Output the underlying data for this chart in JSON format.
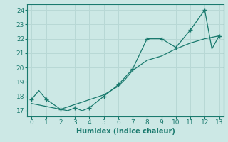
{
  "xlabel": "Humidex (Indice chaleur)",
  "ylabel": "",
  "xlim": [
    -0.3,
    13.3
  ],
  "ylim": [
    16.6,
    24.4
  ],
  "xticks": [
    0,
    1,
    2,
    3,
    4,
    5,
    6,
    7,
    8,
    9,
    10,
    11,
    12,
    13
  ],
  "yticks": [
    17,
    18,
    19,
    20,
    21,
    22,
    23,
    24
  ],
  "jagged_x": [
    0,
    0.5,
    1,
    2,
    2.5,
    3,
    3.5,
    4,
    5,
    6,
    7,
    8,
    9,
    10,
    11,
    12,
    12.5,
    13
  ],
  "jagged_y": [
    17.8,
    18.4,
    17.8,
    17.1,
    17.0,
    17.2,
    17.0,
    17.2,
    18.0,
    18.8,
    19.9,
    22.0,
    22.0,
    21.4,
    22.6,
    24.0,
    21.3,
    22.2
  ],
  "marker_x": [
    0,
    1,
    2,
    3,
    4,
    5,
    6,
    7,
    8,
    9,
    10,
    11,
    12,
    13
  ],
  "marker_y": [
    17.8,
    17.8,
    17.1,
    17.2,
    17.2,
    18.0,
    18.8,
    19.9,
    22.0,
    22.0,
    21.4,
    22.6,
    24.0,
    22.2
  ],
  "trend_x": [
    0,
    2,
    5,
    6,
    6.5,
    7,
    8,
    9,
    10,
    11,
    12,
    13
  ],
  "trend_y": [
    17.5,
    17.1,
    18.1,
    18.7,
    19.2,
    19.8,
    20.5,
    20.8,
    21.3,
    21.7,
    22.0,
    22.2
  ],
  "line_color": "#1a7a6e",
  "bg_color": "#cce8e5",
  "grid_color": "#b8d8d5",
  "tick_color": "#1a7a6e",
  "label_fontsize": 7,
  "tick_fontsize": 6.5
}
